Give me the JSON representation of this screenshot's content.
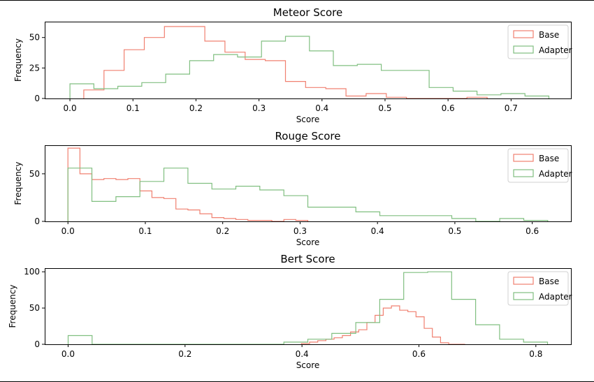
{
  "chart_data": [
    {
      "type": "histogram",
      "title": "Meteor Score",
      "xlabel": "Score",
      "ylabel": "Frequency",
      "xlim": [
        -0.04,
        0.795
      ],
      "ylim": [
        0,
        63
      ],
      "xticks": [
        0.0,
        0.1,
        0.2,
        0.3,
        0.4,
        0.5,
        0.6,
        0.7
      ],
      "xtick_labels": [
        "0.0",
        "0.1",
        "0.2",
        "0.3",
        "0.4",
        "0.5",
        "0.6",
        "0.7"
      ],
      "yticks": [
        0,
        25,
        50
      ],
      "ytick_labels": [
        "0",
        "25",
        "50"
      ],
      "legend": [
        "Base",
        "Adapter"
      ],
      "legend_position": "top-right",
      "series": [
        {
          "name": "Base",
          "color": "#f08070",
          "edges": [
            0.022,
            0.054,
            0.086,
            0.118,
            0.15,
            0.182,
            0.214,
            0.246,
            0.278,
            0.31,
            0.342,
            0.374,
            0.406,
            0.438,
            0.47,
            0.502,
            0.534,
            0.566,
            0.598,
            0.63,
            0.662
          ],
          "counts": [
            7,
            23,
            40,
            50,
            59,
            59,
            47,
            38,
            32,
            31,
            14,
            9,
            8,
            2,
            4,
            1,
            0,
            0,
            0,
            1
          ]
        },
        {
          "name": "Adapter",
          "color": "#80bf80",
          "edges": [
            0.0,
            0.038,
            0.076,
            0.114,
            0.152,
            0.19,
            0.228,
            0.266,
            0.304,
            0.342,
            0.38,
            0.418,
            0.456,
            0.494,
            0.532,
            0.57,
            0.608,
            0.646,
            0.684,
            0.722,
            0.76
          ],
          "counts": [
            12,
            8,
            10,
            13,
            20,
            31,
            36,
            34,
            47,
            51,
            39,
            27,
            28,
            23,
            23,
            9,
            6,
            3,
            4,
            2
          ]
        }
      ]
    },
    {
      "type": "histogram",
      "title": "Rouge Score",
      "xlabel": "Score",
      "ylabel": "Frequency",
      "xlim": [
        -0.03,
        0.65
      ],
      "ylim": [
        0,
        80
      ],
      "xticks": [
        0.0,
        0.1,
        0.2,
        0.3,
        0.4,
        0.5,
        0.6
      ],
      "xtick_labels": [
        "0.0",
        "0.1",
        "0.2",
        "0.3",
        "0.4",
        "0.5",
        "0.6"
      ],
      "yticks": [
        0,
        50
      ],
      "ytick_labels": [
        "0",
        "50"
      ],
      "legend": [
        "Base",
        "Adapter"
      ],
      "legend_position": "top-right",
      "series": [
        {
          "name": "Base",
          "color": "#f08070",
          "edges": [
            0.0,
            0.0155,
            0.031,
            0.0465,
            0.062,
            0.0775,
            0.093,
            0.1085,
            0.124,
            0.1395,
            0.155,
            0.1705,
            0.186,
            0.2015,
            0.217,
            0.2325,
            0.248,
            0.2635,
            0.279,
            0.2945,
            0.31
          ],
          "counts": [
            77,
            50,
            44,
            45,
            44,
            45,
            32,
            25,
            24,
            13,
            12,
            8,
            4,
            3,
            2,
            1,
            1,
            0,
            2,
            1
          ]
        },
        {
          "name": "Adapter",
          "color": "#80bf80",
          "edges": [
            0.0,
            0.031,
            0.062,
            0.093,
            0.124,
            0.155,
            0.186,
            0.217,
            0.248,
            0.279,
            0.31,
            0.341,
            0.372,
            0.403,
            0.434,
            0.465,
            0.496,
            0.527,
            0.558,
            0.589,
            0.62
          ],
          "counts": [
            56,
            21,
            26,
            42,
            56,
            40,
            34,
            37,
            33,
            27,
            15,
            15,
            10,
            6,
            6,
            6,
            3,
            0,
            3,
            1
          ]
        }
      ]
    },
    {
      "type": "histogram",
      "title": "Bert Score",
      "xlabel": "Score",
      "ylabel": "Frequency",
      "xlim": [
        -0.04,
        0.86
      ],
      "ylim": [
        0,
        105
      ],
      "xticks": [
        0.0,
        0.2,
        0.4,
        0.6,
        0.8
      ],
      "xtick_labels": [
        "0.0",
        "0.2",
        "0.4",
        "0.6",
        "0.8"
      ],
      "yticks": [
        0,
        50,
        100
      ],
      "ytick_labels": [
        "0",
        "50",
        "100"
      ],
      "legend": [
        "Base",
        "Adapter"
      ],
      "legend_position": "top-right",
      "series": [
        {
          "name": "Base",
          "color": "#f08070",
          "edges": [
            0.399,
            0.413,
            0.427,
            0.441,
            0.455,
            0.469,
            0.483,
            0.497,
            0.511,
            0.525,
            0.539,
            0.553,
            0.567,
            0.581,
            0.595,
            0.609,
            0.623,
            0.637,
            0.651,
            0.665,
            0.679
          ],
          "counts": [
            1,
            3,
            5,
            7,
            9,
            12,
            17,
            20,
            30,
            40,
            50,
            53,
            47,
            45,
            38,
            22,
            10,
            2,
            0,
            0
          ]
        },
        {
          "name": "Adapter",
          "color": "#80bf80",
          "edges": [
            0.0,
            0.041,
            0.082,
            0.123,
            0.164,
            0.205,
            0.246,
            0.287,
            0.328,
            0.369,
            0.41,
            0.451,
            0.492,
            0.533,
            0.574,
            0.615,
            0.656,
            0.697,
            0.738,
            0.779,
            0.82
          ],
          "counts": [
            12,
            0,
            0,
            0,
            0,
            0,
            0,
            0,
            0,
            3,
            7,
            15,
            30,
            62,
            99,
            100,
            62,
            27,
            7,
            3
          ]
        }
      ]
    }
  ]
}
